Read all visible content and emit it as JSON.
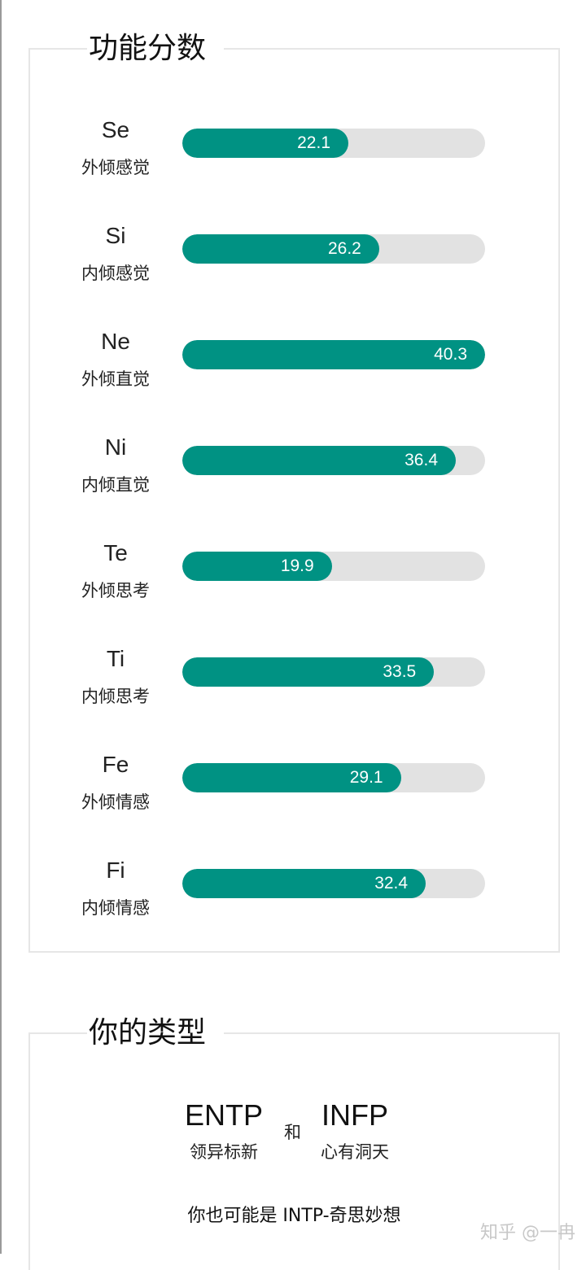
{
  "functions": {
    "title": "功能分数",
    "max_value": 40.3,
    "accent_color": "#009283",
    "track_color": "#e2e2e2",
    "items": [
      {
        "code": "Se",
        "name": "外倾感觉",
        "value": 22.1
      },
      {
        "code": "Si",
        "name": "内倾感觉",
        "value": 26.2
      },
      {
        "code": "Ne",
        "name": "外倾直觉",
        "value": 40.3
      },
      {
        "code": "Ni",
        "name": "内倾直觉",
        "value": 36.4
      },
      {
        "code": "Te",
        "name": "外倾思考",
        "value": 19.9
      },
      {
        "code": "Ti",
        "name": "内倾思考",
        "value": 33.5
      },
      {
        "code": "Fe",
        "name": "外倾情感",
        "value": 29.1
      },
      {
        "code": "Fi",
        "name": "内倾情感",
        "value": 32.4
      }
    ]
  },
  "your_type": {
    "title": "你的类型",
    "primary": {
      "code": "ENTP",
      "desc": "领异标新"
    },
    "connector": "和",
    "secondary": {
      "code": "INFP",
      "desc": "心有洞天"
    },
    "also_possible": "你也可能是 INTP-奇思妙想"
  },
  "watermark": "知乎 @一冉"
}
